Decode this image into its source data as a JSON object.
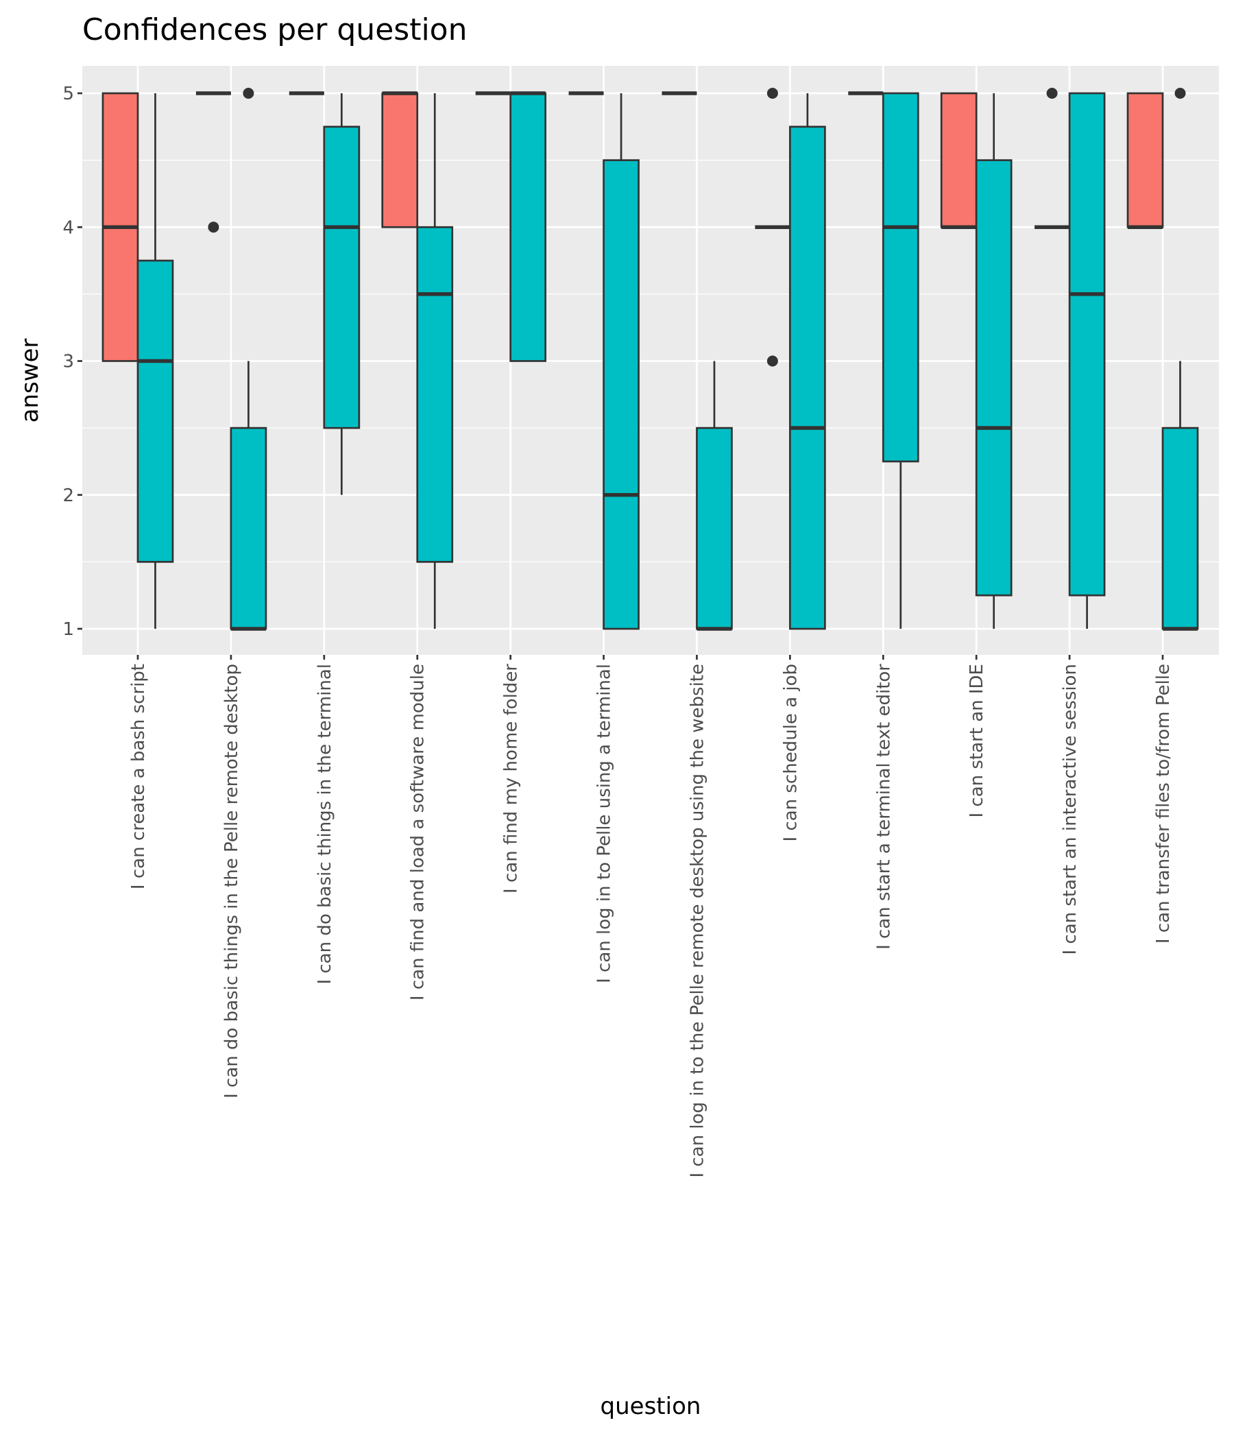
{
  "chart_data": {
    "type": "boxplot",
    "title": "Confidences per question",
    "xlabel": "question",
    "ylabel": "answer",
    "ylim": [
      0.8,
      5.2
    ],
    "yticks": [
      1,
      2,
      3,
      4,
      5
    ],
    "grid": true,
    "legend": "none",
    "categories": [
      "I can create a bash script",
      "I can do basic things in the Pelle remote desktop",
      "I can do basic things in the terminal",
      "I can find and load a software module",
      "I can find my home folder",
      "I can log in to Pelle using a terminal",
      "I can log in to the Pelle remote desktop using the website",
      "I can schedule a job",
      "I can start a terminal text editor",
      "I can start an IDE",
      "I can start an interactive session",
      "I can transfer files to/from Pelle"
    ],
    "series": [
      {
        "fill": "#F8766D",
        "boxes": [
          {
            "lower_whisker": 3,
            "q1": 3,
            "median": 4,
            "q3": 5,
            "upper_whisker": 5,
            "outliers": []
          },
          {
            "lower_whisker": 5,
            "q1": 5,
            "median": 5,
            "q3": 5,
            "upper_whisker": 5,
            "outliers": [
              4
            ]
          },
          {
            "lower_whisker": 5,
            "q1": 5,
            "median": 5,
            "q3": 5,
            "upper_whisker": 5,
            "outliers": []
          },
          {
            "lower_whisker": 4,
            "q1": 4,
            "median": 5,
            "q3": 5,
            "upper_whisker": 5,
            "outliers": []
          },
          {
            "lower_whisker": 5,
            "q1": 5,
            "median": 5,
            "q3": 5,
            "upper_whisker": 5,
            "outliers": []
          },
          {
            "lower_whisker": 5,
            "q1": 5,
            "median": 5,
            "q3": 5,
            "upper_whisker": 5,
            "outliers": []
          },
          {
            "lower_whisker": 5,
            "q1": 5,
            "median": 5,
            "q3": 5,
            "upper_whisker": 5,
            "outliers": []
          },
          {
            "lower_whisker": 4,
            "q1": 4,
            "median": 4,
            "q3": 4,
            "upper_whisker": 4,
            "outliers": [
              5,
              3
            ]
          },
          {
            "lower_whisker": 5,
            "q1": 5,
            "median": 5,
            "q3": 5,
            "upper_whisker": 5,
            "outliers": []
          },
          {
            "lower_whisker": 4,
            "q1": 4,
            "median": 4,
            "q3": 5,
            "upper_whisker": 5,
            "outliers": []
          },
          {
            "lower_whisker": 4,
            "q1": 4,
            "median": 4,
            "q3": 4,
            "upper_whisker": 4,
            "outliers": [
              5
            ]
          },
          {
            "lower_whisker": 4,
            "q1": 4,
            "median": 4,
            "q3": 5,
            "upper_whisker": 5,
            "outliers": []
          }
        ]
      },
      {
        "fill": "#00BFC4",
        "boxes": [
          {
            "lower_whisker": 1,
            "q1": 1.5,
            "median": 3,
            "q3": 3.75,
            "upper_whisker": 5,
            "outliers": []
          },
          {
            "lower_whisker": 1,
            "q1": 1,
            "median": 1,
            "q3": 2.5,
            "upper_whisker": 3,
            "outliers": [
              5
            ]
          },
          {
            "lower_whisker": 2,
            "q1": 2.5,
            "median": 4,
            "q3": 4.75,
            "upper_whisker": 5,
            "outliers": []
          },
          {
            "lower_whisker": 1,
            "q1": 1.5,
            "median": 3.5,
            "q3": 4,
            "upper_whisker": 5,
            "outliers": []
          },
          {
            "lower_whisker": 3,
            "q1": 3,
            "median": 5,
            "q3": 5,
            "upper_whisker": 5,
            "outliers": []
          },
          {
            "lower_whisker": 1,
            "q1": 1,
            "median": 2,
            "q3": 4.5,
            "upper_whisker": 5,
            "outliers": []
          },
          {
            "lower_whisker": 1,
            "q1": 1,
            "median": 1,
            "q3": 2.5,
            "upper_whisker": 3,
            "outliers": []
          },
          {
            "lower_whisker": 1,
            "q1": 1,
            "median": 2.5,
            "q3": 4.75,
            "upper_whisker": 5,
            "outliers": []
          },
          {
            "lower_whisker": 1,
            "q1": 2.25,
            "median": 4,
            "q3": 5,
            "upper_whisker": 5,
            "outliers": []
          },
          {
            "lower_whisker": 1,
            "q1": 1.25,
            "median": 2.5,
            "q3": 4.5,
            "upper_whisker": 5,
            "outliers": []
          },
          {
            "lower_whisker": 1,
            "q1": 1.25,
            "median": 3.5,
            "q3": 5,
            "upper_whisker": 5,
            "outliers": []
          },
          {
            "lower_whisker": 1,
            "q1": 1,
            "median": 1,
            "q3": 2.5,
            "upper_whisker": 3,
            "outliers": [
              5
            ]
          }
        ]
      }
    ]
  }
}
